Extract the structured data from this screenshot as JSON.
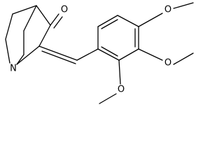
{
  "atoms": [
    "O",
    "N",
    "O",
    "O",
    "O"
  ]
}
